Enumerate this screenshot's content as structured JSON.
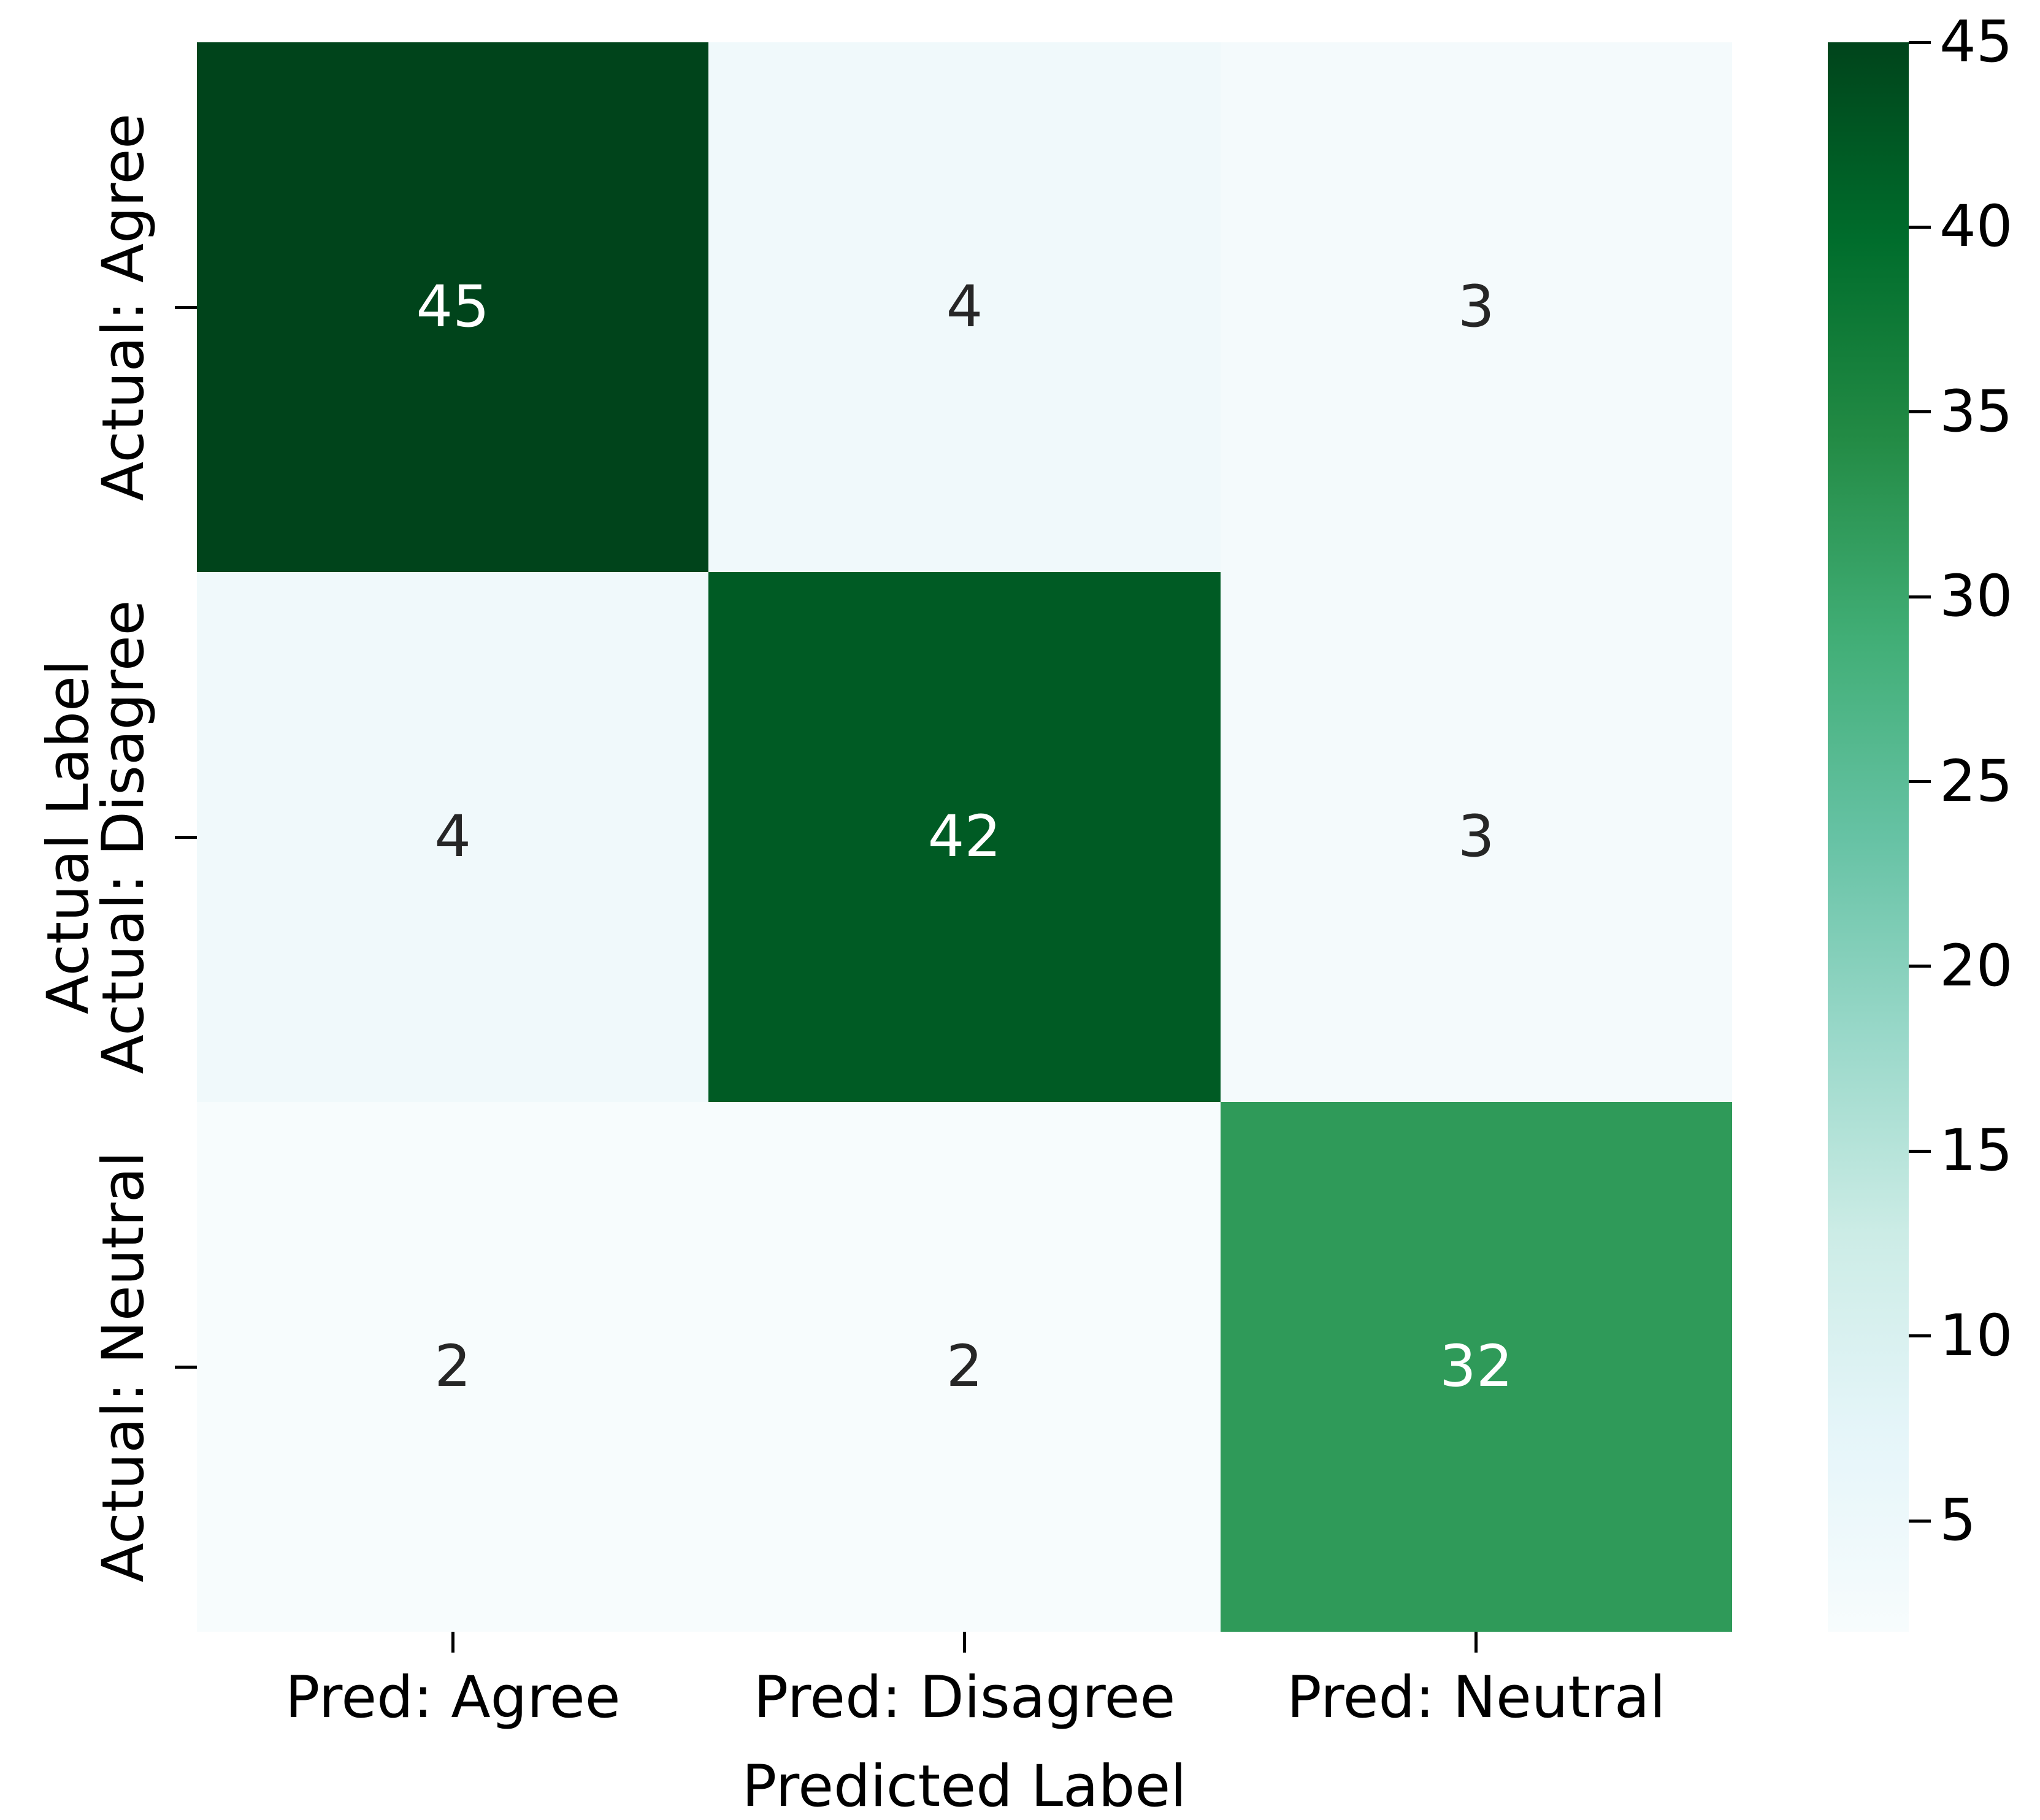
{
  "figure": {
    "background": "#ffffff",
    "text_color": "#000000"
  },
  "chart_data": {
    "type": "heatmap",
    "title": "",
    "xlabel": "Predicted Label",
    "ylabel": "Actual Label",
    "x_tick_labels": [
      "Pred: Agree",
      "Pred: Disagree",
      "Pred: Neutral"
    ],
    "y_tick_labels": [
      "Actual: Agree",
      "Actual: Disagree",
      "Actual: Neutral"
    ],
    "values": [
      [
        45,
        4,
        3
      ],
      [
        4,
        42,
        3
      ],
      [
        2,
        2,
        32
      ]
    ],
    "vmin": 2,
    "vmax": 45,
    "colormap": "BuGn",
    "colormap_stops": [
      "#f7fcfd",
      "#e5f5f9",
      "#ccece6",
      "#99d8c9",
      "#66c2a4",
      "#41ae76",
      "#238b45",
      "#006d2c",
      "#00441b"
    ],
    "colorbar_ticks": [
      5,
      10,
      15,
      20,
      25,
      30,
      35,
      40,
      45
    ],
    "cell_colors": [
      [
        "#00441b",
        "#f0f9fb",
        "#f4fafc"
      ],
      [
        "#f0f9fb",
        "#005b24",
        "#f4fafc"
      ],
      [
        "#f7fcfd",
        "#f7fcfd",
        "#2f9a59"
      ]
    ],
    "annot_colors": [
      [
        "#ffffff",
        "#262626",
        "#262626"
      ],
      [
        "#262626",
        "#ffffff",
        "#262626"
      ],
      [
        "#262626",
        "#262626",
        "#ffffff"
      ]
    ],
    "legend_position": "right",
    "grid": false
  }
}
